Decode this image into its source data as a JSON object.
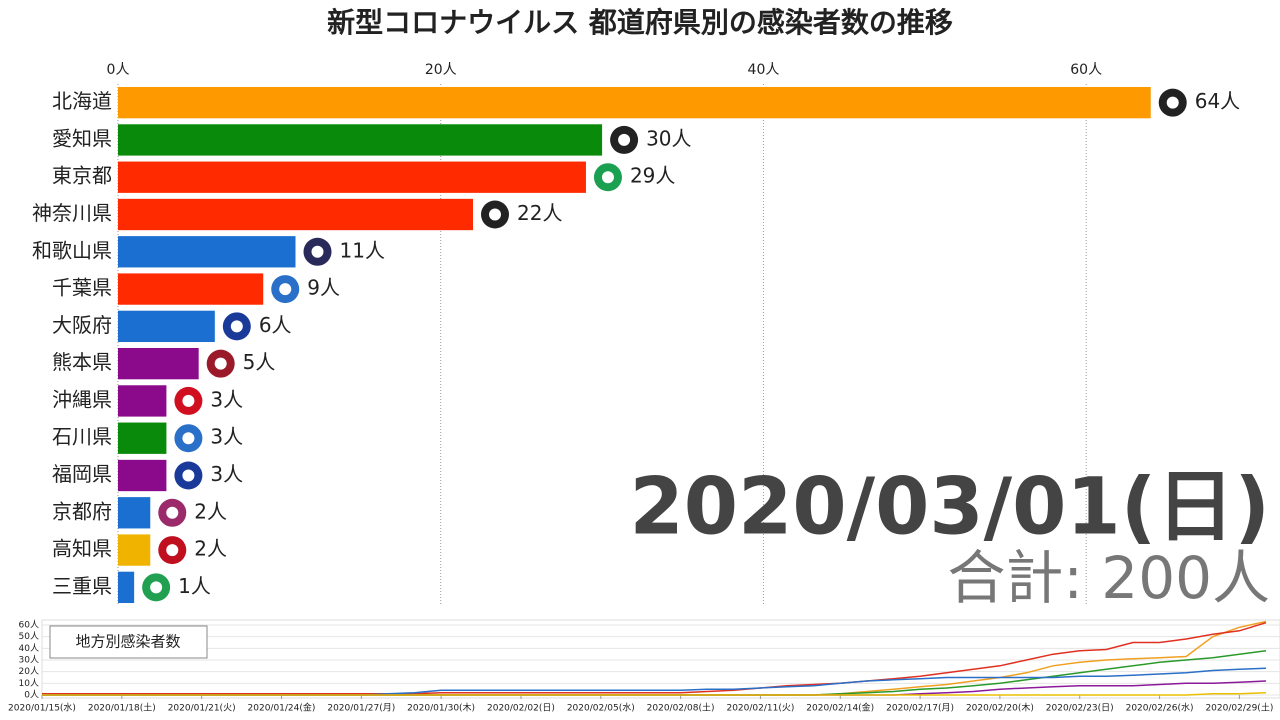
{
  "chart_data": [
    {
      "type": "hbar",
      "title": "新型コロナウイルス 都道府県別の感染者数の推移",
      "categories": [
        "北海道",
        "愛知県",
        "東京都",
        "神奈川県",
        "和歌山県",
        "千葉県",
        "大阪府",
        "熊本県",
        "沖縄県",
        "石川県",
        "福岡県",
        "京都府",
        "高知県",
        "三重県"
      ],
      "values": [
        64,
        30,
        29,
        22,
        11,
        9,
        6,
        5,
        3,
        3,
        3,
        2,
        2,
        1
      ],
      "value_labels": [
        "64人",
        "30人",
        "29人",
        "22人",
        "11人",
        "9人",
        "6人",
        "5人",
        "3人",
        "3人",
        "3人",
        "2人",
        "2人",
        "1人"
      ],
      "colors": [
        "#ff9900",
        "#0a8a0a",
        "#ff2a00",
        "#ff2a00",
        "#1a6fd1",
        "#ff2a00",
        "#1a6fd1",
        "#8b0a8b",
        "#8b0a8b",
        "#0a8a0a",
        "#8b0a8b",
        "#1a6fd1",
        "#f0b400",
        "#1a6fd1"
      ],
      "xlim": [
        0,
        66
      ],
      "xticks": [
        {
          "value": 0,
          "label": "0人"
        },
        {
          "value": 20,
          "label": "20人"
        },
        {
          "value": 40,
          "label": "40人"
        },
        {
          "value": 60,
          "label": "60人"
        }
      ],
      "grid": true,
      "annotations": [
        "2020/03/01(日)",
        "合計: 200人"
      ]
    },
    {
      "type": "line",
      "title": "地方別感染者数",
      "categories": [
        "2020/01/15(水)",
        null,
        null,
        "2020/01/18(土)",
        null,
        null,
        "2020/01/21(火)",
        null,
        null,
        "2020/01/24(金)",
        null,
        null,
        "2020/01/27(月)",
        null,
        null,
        "2020/01/30(木)",
        null,
        null,
        "2020/02/02(日)",
        null,
        null,
        "2020/02/05(水)",
        null,
        null,
        "2020/02/08(土)",
        null,
        null,
        "2020/02/11(火)",
        null,
        null,
        "2020/02/14(金)",
        null,
        null,
        "2020/02/17(月)",
        null,
        null,
        "2020/02/20(木)",
        null,
        null,
        "2020/02/23(日)",
        null,
        null,
        "2020/02/26(水)",
        null,
        null,
        "2020/02/29(土)",
        null
      ],
      "series": [
        {
          "color": "#f0a020",
          "values": [
            0,
            0,
            0,
            0,
            0,
            0,
            0,
            0,
            0,
            0,
            0,
            0,
            0,
            0,
            0,
            0,
            0,
            0,
            0,
            0,
            0,
            0,
            0,
            0,
            0,
            0,
            0,
            0,
            0,
            0,
            1,
            3,
            5,
            7,
            9,
            12,
            15,
            19,
            25,
            28,
            30,
            31,
            32,
            33,
            50,
            58,
            63
          ]
        },
        {
          "color": "#e03020",
          "values": [
            1,
            1,
            1,
            1,
            1,
            1,
            1,
            1,
            1,
            1,
            1,
            1,
            1,
            1,
            1,
            2,
            2,
            2,
            2,
            2,
            2,
            2,
            2,
            2,
            2,
            3,
            4,
            6,
            8,
            9,
            10,
            12,
            14,
            16,
            19,
            22,
            25,
            30,
            35,
            38,
            39,
            45,
            45,
            48,
            52,
            55,
            62
          ]
        },
        {
          "color": "#2a9a2a",
          "values": [
            0,
            0,
            0,
            0,
            0,
            0,
            0,
            0,
            0,
            0,
            0,
            0,
            0,
            0,
            0,
            0,
            0,
            0,
            0,
            0,
            0,
            0,
            0,
            0,
            0,
            0,
            0,
            0,
            0,
            0,
            1,
            2,
            3,
            5,
            6,
            8,
            10,
            13,
            16,
            19,
            22,
            25,
            28,
            30,
            32,
            35,
            38
          ]
        },
        {
          "color": "#2a6fc8",
          "values": [
            0,
            0,
            0,
            0,
            0,
            0,
            0,
            0,
            0,
            0,
            0,
            0,
            0,
            1,
            2,
            4,
            4,
            4,
            4,
            4,
            4,
            4,
            4,
            4,
            4,
            5,
            5,
            6,
            7,
            8,
            10,
            12,
            13,
            14,
            15,
            15,
            15,
            15,
            15,
            16,
            16,
            17,
            18,
            19,
            21,
            22,
            23
          ]
        },
        {
          "color": "#8b1a9b",
          "values": [
            0,
            0,
            0,
            0,
            0,
            0,
            0,
            0,
            0,
            0,
            0,
            0,
            0,
            0,
            0,
            0,
            0,
            0,
            0,
            0,
            0,
            0,
            0,
            0,
            0,
            0,
            0,
            0,
            0,
            0,
            0,
            0,
            0,
            1,
            2,
            3,
            5,
            6,
            7,
            8,
            8,
            8,
            9,
            10,
            10,
            11,
            12
          ]
        },
        {
          "color": "#e8c000",
          "values": [
            0,
            0,
            0,
            0,
            0,
            0,
            0,
            0,
            0,
            0,
            0,
            0,
            0,
            0,
            0,
            0,
            0,
            0,
            0,
            0,
            0,
            0,
            0,
            0,
            0,
            0,
            0,
            0,
            0,
            0,
            0,
            0,
            0,
            0,
            0,
            0,
            0,
            0,
            0,
            0,
            0,
            0,
            0,
            0,
            1,
            1,
            2
          ]
        }
      ],
      "ylim": [
        0,
        60
      ],
      "yticks": [
        {
          "value": 0,
          "label": "0人"
        },
        {
          "value": 10,
          "label": "10人"
        },
        {
          "value": 20,
          "label": "20人"
        },
        {
          "value": 30,
          "label": "30人"
        },
        {
          "value": 40,
          "label": "40人"
        },
        {
          "value": 50,
          "label": "50人"
        },
        {
          "value": 60,
          "label": "60人"
        }
      ],
      "grid": true
    }
  ]
}
